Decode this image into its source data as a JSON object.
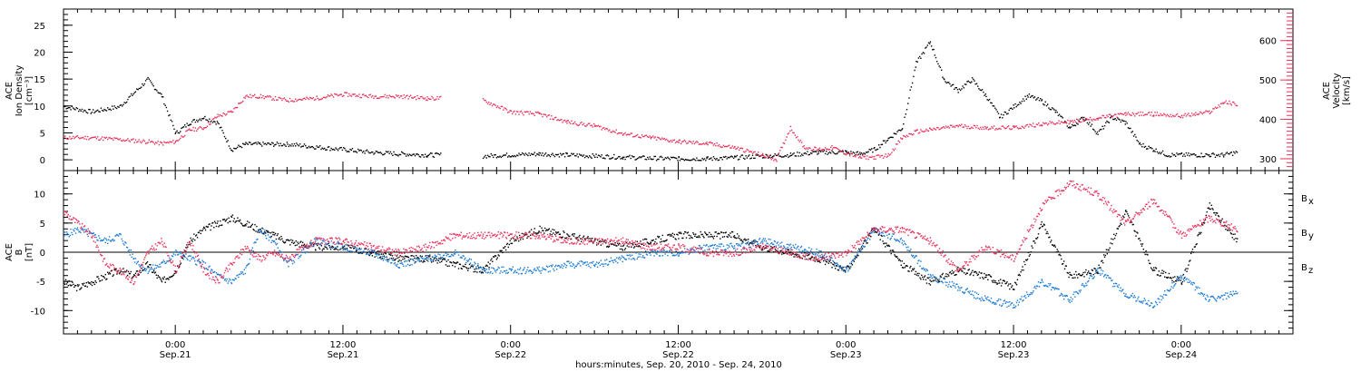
{
  "chart_data": [
    {
      "type": "scatter",
      "panel": "top",
      "left_ylabel_lines": [
        "ACE",
        "Ion Density",
        "[cm⁻³]"
      ],
      "right_ylabel_lines": [
        "ACE",
        "Velocity",
        "[km/s]"
      ],
      "left_ylim": [
        -2,
        28
      ],
      "left_yticks": [
        "0",
        "5",
        "10",
        "15",
        "20",
        "25"
      ],
      "right_ylim": [
        270,
        680
      ],
      "right_yticks": [
        "300",
        "400",
        "500",
        "600"
      ],
      "x_range_hours": [
        -8,
        80
      ],
      "series": [
        {
          "name": "Ion Density",
          "axis": "left",
          "color": "#000000",
          "x": [
            -8,
            -6,
            -4,
            -2,
            -1,
            0,
            1,
            2,
            3,
            4,
            5,
            6,
            7,
            8,
            10,
            12,
            14,
            16,
            18,
            19,
            20,
            22,
            24,
            26,
            28,
            30,
            32,
            34,
            36,
            38,
            40,
            42,
            44,
            46,
            48,
            49,
            50,
            51,
            52,
            53,
            54,
            55,
            56,
            57,
            58,
            59,
            60,
            61,
            62,
            63,
            64,
            65,
            66,
            67,
            68,
            69,
            70,
            71,
            72,
            73,
            74,
            75,
            76
          ],
          "y": [
            10,
            9,
            10,
            15,
            12,
            5,
            7,
            8,
            7,
            2,
            3,
            3,
            3,
            3,
            2.5,
            2,
            1.5,
            1.2,
            1.0,
            1.0,
            null,
            0.8,
            1.0,
            1.2,
            1.0,
            0.8,
            0.6,
            0.4,
            0.3,
            0.3,
            0.5,
            0.8,
            1.0,
            1.5,
            1.5,
            1.2,
            2,
            4,
            6,
            18,
            22,
            15,
            13,
            15,
            12,
            8,
            10,
            12,
            11,
            9,
            6,
            8,
            5,
            8,
            7,
            3,
            2,
            1,
            1,
            1,
            1,
            1,
            1.5
          ]
        },
        {
          "name": "Velocity",
          "axis": "right",
          "color": "#e8305a",
          "x": [
            -8,
            -6,
            -4,
            -2,
            -1,
            0,
            1,
            2,
            3,
            4,
            5,
            6,
            8,
            10,
            12,
            14,
            16,
            18,
            19,
            20,
            22,
            24,
            26,
            28,
            30,
            32,
            34,
            36,
            38,
            40,
            42,
            43,
            44,
            45,
            46,
            47,
            48,
            49,
            50,
            51,
            52,
            53,
            54,
            56,
            58,
            60,
            62,
            64,
            66,
            68,
            70,
            72,
            73,
            74,
            75,
            76
          ],
          "y": [
            355,
            355,
            350,
            345,
            340,
            345,
            375,
            380,
            410,
            420,
            460,
            460,
            450,
            455,
            465,
            460,
            460,
            455,
            455,
            null,
            450,
            420,
            415,
            395,
            385,
            365,
            355,
            345,
            340,
            330,
            310,
            300,
            380,
            330,
            325,
            330,
            315,
            305,
            305,
            310,
            355,
            370,
            375,
            385,
            380,
            380,
            390,
            395,
            405,
            415,
            415,
            410,
            415,
            420,
            445,
            440
          ]
        }
      ]
    },
    {
      "type": "scatter",
      "panel": "bottom",
      "ylabel_lines": [
        "ACE",
        "B",
        "[nT]"
      ],
      "ylim": [
        -14,
        14
      ],
      "yticks": [
        "10",
        "5",
        "0",
        "-5",
        "-10"
      ],
      "x_range_hours": [
        -8,
        80
      ],
      "xtick_times": [
        "0:00",
        "12:00",
        "0:00",
        "12:00",
        "0:00",
        "12:00",
        "0:00"
      ],
      "xtick_dates": [
        "Sep.21",
        "Sep.21",
        "Sep.22",
        "Sep.22",
        "Sep.23",
        "Sep.23",
        "Sep.24"
      ],
      "xlabel": "hours:minutes, Sep. 20, 2010 - Sep. 24, 2010",
      "series": [
        {
          "name": "Bx",
          "label_main": "B",
          "label_sub": "x",
          "color": "#000000",
          "x": [
            -8,
            -7,
            -6,
            -5,
            -4,
            -3,
            -2,
            -1,
            0,
            1,
            2,
            3,
            4,
            5,
            6,
            7,
            8,
            10,
            12,
            14,
            16,
            18,
            20,
            22,
            24,
            26,
            28,
            30,
            32,
            34,
            36,
            38,
            40,
            42,
            44,
            46,
            48,
            50,
            52,
            54,
            56,
            58,
            60,
            62,
            64,
            66,
            68,
            70,
            72,
            74,
            76
          ],
          "y": [
            -5,
            -6,
            -5,
            -4,
            -3,
            -4,
            -2,
            -5,
            -3,
            2,
            4,
            5,
            6,
            5,
            4,
            3,
            2,
            1,
            1,
            0,
            -1,
            -1,
            -2,
            -3,
            2,
            4,
            3,
            2,
            1,
            2,
            3,
            3,
            3,
            1,
            0,
            -1,
            -3,
            4,
            -2,
            -5,
            -3,
            -4,
            -6,
            5,
            -4,
            -3,
            7,
            -3,
            -5,
            8,
            2
          ]
        },
        {
          "name": "By",
          "label_main": "B",
          "label_sub": "y",
          "color": "#1a7ad4",
          "x": [
            -8,
            -7,
            -6,
            -5,
            -4,
            -3,
            -2,
            -1,
            0,
            1,
            2,
            3,
            4,
            5,
            6,
            7,
            8,
            10,
            12,
            14,
            16,
            18,
            20,
            22,
            24,
            26,
            28,
            30,
            32,
            34,
            36,
            38,
            40,
            42,
            44,
            46,
            48,
            50,
            52,
            54,
            56,
            58,
            60,
            62,
            64,
            66,
            68,
            70,
            72,
            74,
            76
          ],
          "y": [
            3,
            4,
            3,
            2,
            3,
            -1,
            -3,
            -2,
            0,
            -1,
            -2,
            -4,
            -5,
            -3,
            4,
            2,
            -2,
            2,
            1,
            0,
            -2,
            -1,
            0,
            -3,
            -3,
            -3,
            -2,
            -2,
            -1,
            0,
            0,
            1,
            1,
            2,
            1,
            0,
            -3,
            4,
            2,
            -4,
            -6,
            -8,
            -9,
            -5,
            -8,
            -3,
            -7,
            -9,
            -4,
            -8,
            -7
          ]
        },
        {
          "name": "Bz",
          "label_main": "B",
          "label_sub": "z",
          "color": "#e8305a",
          "x": [
            -8,
            -7,
            -6,
            -5,
            -4,
            -3,
            -2,
            -1,
            0,
            1,
            2,
            3,
            4,
            5,
            6,
            7,
            8,
            10,
            12,
            14,
            16,
            18,
            20,
            22,
            24,
            26,
            28,
            30,
            32,
            34,
            36,
            38,
            40,
            42,
            44,
            46,
            48,
            50,
            52,
            54,
            56,
            58,
            60,
            62,
            64,
            66,
            68,
            70,
            72,
            74,
            76
          ],
          "y": [
            7,
            5,
            3,
            -2,
            -3,
            -5,
            0,
            2,
            -3,
            2,
            -3,
            -5,
            -2,
            1,
            -1,
            0,
            -1,
            2,
            2,
            1,
            0,
            1,
            3,
            3,
            3,
            3,
            2,
            2,
            2,
            1,
            1,
            0,
            0,
            1,
            0,
            -1,
            0,
            4,
            4,
            2,
            -3,
            1,
            -1,
            8,
            12,
            10,
            5,
            9,
            3,
            6,
            4
          ]
        }
      ]
    }
  ]
}
